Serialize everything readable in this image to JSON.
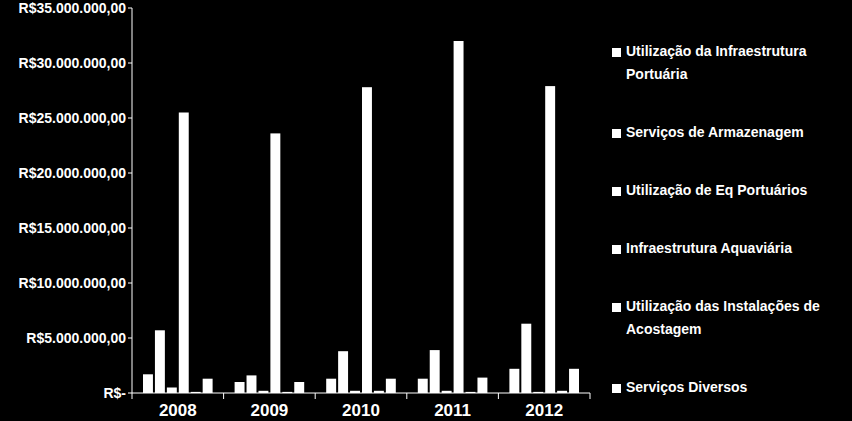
{
  "chart_data": {
    "type": "bar",
    "categories": [
      "2008",
      "2009",
      "2010",
      "2011",
      "2012"
    ],
    "series": [
      {
        "name": "Utilização da Infraestrutura Portuária",
        "color": "#ffffff",
        "values": [
          1700000,
          1000000,
          1300000,
          1300000,
          2200000
        ]
      },
      {
        "name": "Serviços de Armazenagem",
        "color": "#ffffff",
        "values": [
          5700000,
          1600000,
          3800000,
          3900000,
          6300000
        ]
      },
      {
        "name": "Utilização de Eq Portuários",
        "color": "#ffffff",
        "values": [
          500000,
          200000,
          200000,
          200000,
          100000
        ]
      },
      {
        "name": "Infraestrutura Aquaviária",
        "color": "#ffffff",
        "values": [
          25500000,
          23600000,
          27800000,
          32000000,
          27900000
        ]
      },
      {
        "name": "Utilização das Instalações de Acostagem",
        "color": "#ffffff",
        "values": [
          100000,
          100000,
          200000,
          100000,
          200000
        ]
      },
      {
        "name": "Serviços Diversos",
        "color": "#ffffff",
        "values": [
          1300000,
          1000000,
          1300000,
          1400000,
          2200000
        ]
      }
    ],
    "ylim": [
      0,
      35000000
    ],
    "yticks": [
      {
        "value": 0,
        "label": "R$-"
      },
      {
        "value": 5000000,
        "label": "R$5.000.000,00"
      },
      {
        "value": 10000000,
        "label": "R$10.000.000,00"
      },
      {
        "value": 15000000,
        "label": "R$15.000.000,00"
      },
      {
        "value": 20000000,
        "label": "R$20.000.000,00"
      },
      {
        "value": 25000000,
        "label": "R$25.000.000,00"
      },
      {
        "value": 30000000,
        "label": "R$30.000.000,00"
      },
      {
        "value": 35000000,
        "label": "R$35.000.000,00"
      }
    ],
    "grid": false,
    "legend": "right"
  }
}
